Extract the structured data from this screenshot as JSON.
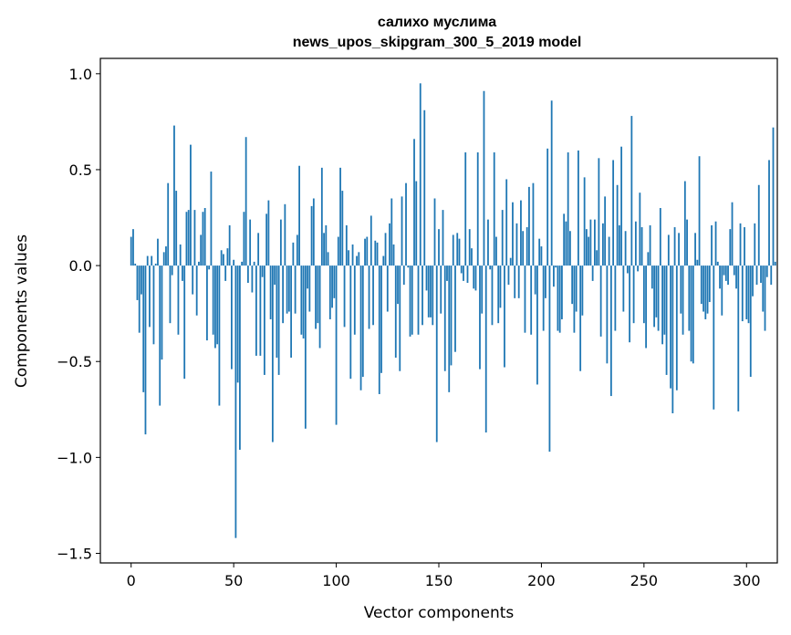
{
  "chart_data": {
    "type": "bar",
    "title": "салихо муслима",
    "subtitle": "news_upos_skipgram_300_5_2019 model",
    "xlabel": "Vector components",
    "ylabel": "Components values",
    "xlim": [
      -15,
      315
    ],
    "ylim": [
      -1.55,
      1.08
    ],
    "xticks": [
      0,
      50,
      100,
      150,
      200,
      250,
      300
    ],
    "yticks": [
      1.0,
      0.5,
      0.0,
      -0.5,
      -1.0,
      -1.5
    ],
    "ytick_labels": [
      "1.0",
      "0.5",
      "0.0",
      "−0.5",
      "−1.0",
      "−1.5"
    ],
    "bar_color": "#1f77b4",
    "grid": false,
    "values": [
      0.15,
      0.19,
      0.01,
      -0.18,
      -0.35,
      -0.15,
      -0.66,
      -0.88,
      0.05,
      -0.32,
      0.05,
      -0.41,
      0.01,
      0.14,
      -0.73,
      -0.49,
      0.07,
      0.1,
      0.43,
      -0.3,
      -0.05,
      0.73,
      0.39,
      -0.36,
      0.11,
      -0.08,
      -0.59,
      0.28,
      0.29,
      0.63,
      -0.15,
      0.29,
      -0.26,
      0.02,
      0.16,
      0.28,
      0.3,
      -0.39,
      -0.02,
      0.49,
      -0.36,
      -0.43,
      -0.41,
      -0.73,
      0.08,
      0.06,
      -0.08,
      0.09,
      0.21,
      -0.54,
      0.03,
      -1.42,
      -0.61,
      -0.96,
      0.02,
      0.28,
      0.67,
      -0.09,
      0.24,
      -0.14,
      0.02,
      -0.47,
      0.17,
      -0.47,
      -0.06,
      -0.57,
      0.27,
      0.34,
      -0.28,
      -0.92,
      -0.1,
      -0.48,
      -0.57,
      0.24,
      -0.3,
      0.32,
      -0.25,
      -0.24,
      -0.48,
      0.12,
      -0.25,
      0.16,
      0.52,
      -0.36,
      -0.38,
      -0.85,
      -0.12,
      -0.24,
      0.31,
      0.35,
      -0.33,
      -0.3,
      -0.43,
      0.51,
      0.17,
      0.21,
      0.07,
      -0.28,
      -0.22,
      -0.17,
      -0.83,
      0.15,
      0.51,
      0.39,
      -0.32,
      0.21,
      0.08,
      -0.59,
      0.11,
      -0.36,
      0.05,
      0.07,
      -0.65,
      -0.58,
      0.14,
      0.15,
      -0.33,
      0.26,
      -0.31,
      0.13,
      0.12,
      -0.67,
      -0.56,
      0.05,
      0.17,
      -0.24,
      0.22,
      0.35,
      0.11,
      -0.48,
      -0.2,
      -0.55,
      0.36,
      -0.1,
      0.43,
      -0.01,
      -0.37,
      -0.36,
      0.66,
      0.44,
      -0.36,
      0.95,
      -0.31,
      0.81,
      -0.13,
      -0.27,
      -0.27,
      -0.31,
      0.35,
      -0.92,
      0.19,
      -0.25,
      0.29,
      -0.55,
      -0.08,
      -0.66,
      -0.52,
      0.16,
      -0.45,
      0.17,
      0.14,
      -0.04,
      -0.08,
      0.59,
      -0.09,
      0.19,
      0.09,
      -0.12,
      -0.13,
      0.59,
      -0.54,
      -0.25,
      0.91,
      -0.87,
      0.24,
      -0.02,
      -0.31,
      0.59,
      0.15,
      -0.3,
      -0.22,
      0.29,
      -0.53,
      0.45,
      -0.1,
      0.04,
      0.33,
      -0.17,
      0.22,
      -0.17,
      0.34,
      0.18,
      -0.35,
      0.2,
      0.41,
      -0.36,
      0.43,
      -0.15,
      -0.62,
      0.14,
      0.1,
      -0.34,
      -0.17,
      0.61,
      -0.97,
      0.86,
      -0.11,
      -0.01,
      -0.34,
      -0.35,
      -0.28,
      0.27,
      0.23,
      0.59,
      0.18,
      -0.2,
      -0.35,
      -0.24,
      0.6,
      -0.55,
      -0.26,
      0.46,
      0.19,
      0.15,
      0.24,
      -0.08,
      0.24,
      0.08,
      0.56,
      -0.37,
      0.22,
      0.36,
      -0.51,
      0.15,
      -0.68,
      0.55,
      -0.34,
      0.42,
      0.21,
      0.62,
      -0.24,
      0.18,
      -0.04,
      -0.4,
      0.78,
      -0.3,
      0.23,
      -0.03,
      0.38,
      0.2,
      -0.3,
      -0.43,
      0.07,
      0.21,
      -0.12,
      -0.32,
      -0.27,
      -0.34,
      0.3,
      -0.41,
      -0.36,
      -0.57,
      0.16,
      -0.64,
      -0.77,
      0.2,
      -0.65,
      0.17,
      -0.25,
      -0.36,
      0.44,
      0.24,
      -0.34,
      -0.5,
      -0.51,
      0.17,
      0.03,
      0.57,
      -0.2,
      -0.24,
      -0.28,
      -0.25,
      -0.19,
      0.21,
      -0.75,
      0.23,
      0.02,
      -0.12,
      -0.26,
      -0.05,
      -0.08,
      -0.1,
      0.19,
      0.33,
      -0.05,
      -0.12,
      -0.76,
      0.22,
      -0.29,
      0.2,
      -0.28,
      -0.3,
      -0.58,
      -0.16,
      0.22,
      -0.1,
      0.42,
      -0.09,
      -0.24,
      -0.34,
      -0.06,
      0.55,
      -0.1,
      0.72,
      0.02
    ]
  }
}
